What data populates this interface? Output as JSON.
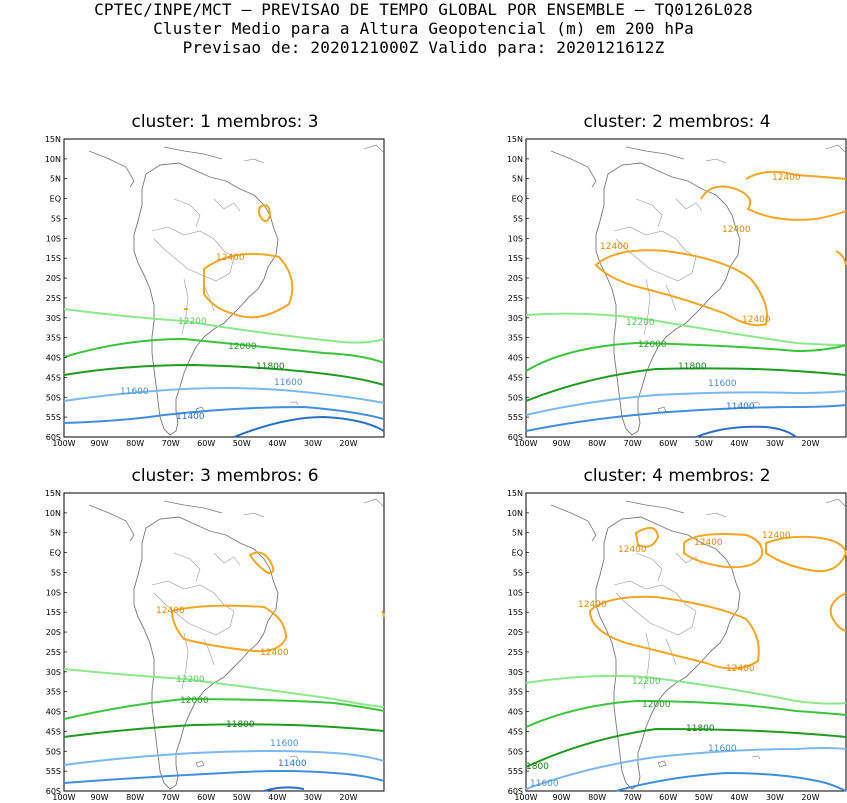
{
  "header": {
    "line1": "CPTEC/INPE/MCT — PREVISAO DE TEMPO GLOBAL POR ENSEMBLE — TQ0126L028",
    "line2": "Cluster Medio para a Altura Geopotencial (m) em 200 hPa",
    "line3": "Previsao de: 2020121000Z   Valido para: 2020121612Z"
  },
  "axes": {
    "lat_labels": [
      "15N",
      "10N",
      "5N",
      "EQ",
      "5S",
      "10S",
      "15S",
      "20S",
      "25S",
      "30S",
      "35S",
      "40S",
      "45S",
      "50S",
      "55S",
      "60S"
    ],
    "lon_labels": [
      "100W",
      "90W",
      "80W",
      "70W",
      "60W",
      "50W",
      "40W",
      "30W",
      "20W"
    ]
  },
  "colors": {
    "c12400": "#f5a623",
    "c12200": "#8be88b",
    "c12000": "#3cc43c",
    "c11800": "#1f9c1f",
    "c11600": "#7ab8ee",
    "c11400": "#3f8fdc",
    "c11200": "#2a6fc7",
    "coast": "#777777"
  },
  "panels": [
    {
      "title": "cluster: 1  membros: 3",
      "labels": {
        "l12400a": "12400",
        "l12200": "12200",
        "l12000": "12000",
        "l11800": "11800",
        "l11600a": "11600",
        "l11600b": "11600",
        "l11400": "11400"
      }
    },
    {
      "title": "cluster: 2  membros: 4",
      "labels": {
        "l12400a": "12400",
        "l12400b": "12400",
        "l12400c": "12400",
        "l12400d": "12400",
        "l12200": "12200",
        "l12000": "12000",
        "l11800": "11800",
        "l11600": "11600",
        "l11400": "11400"
      }
    },
    {
      "title": "cluster: 3  membros: 6",
      "labels": {
        "l12400a": "12400",
        "l12400b": "12400",
        "l12200": "12200",
        "l12000": "12000",
        "l11800": "11800",
        "l11600": "11600",
        "l11400": "11400"
      }
    },
    {
      "title": "cluster: 4  membros: 2",
      "labels": {
        "l12400a": "12400",
        "l12400b": "12400",
        "l12400c": "12400",
        "l12400d": "12400",
        "l12400e": "12400",
        "l12200": "12200",
        "l12000": "12000",
        "l11800": "11800",
        "l11800b": "1800",
        "l11600": "11600",
        "l11600b": "11600"
      }
    }
  ]
}
